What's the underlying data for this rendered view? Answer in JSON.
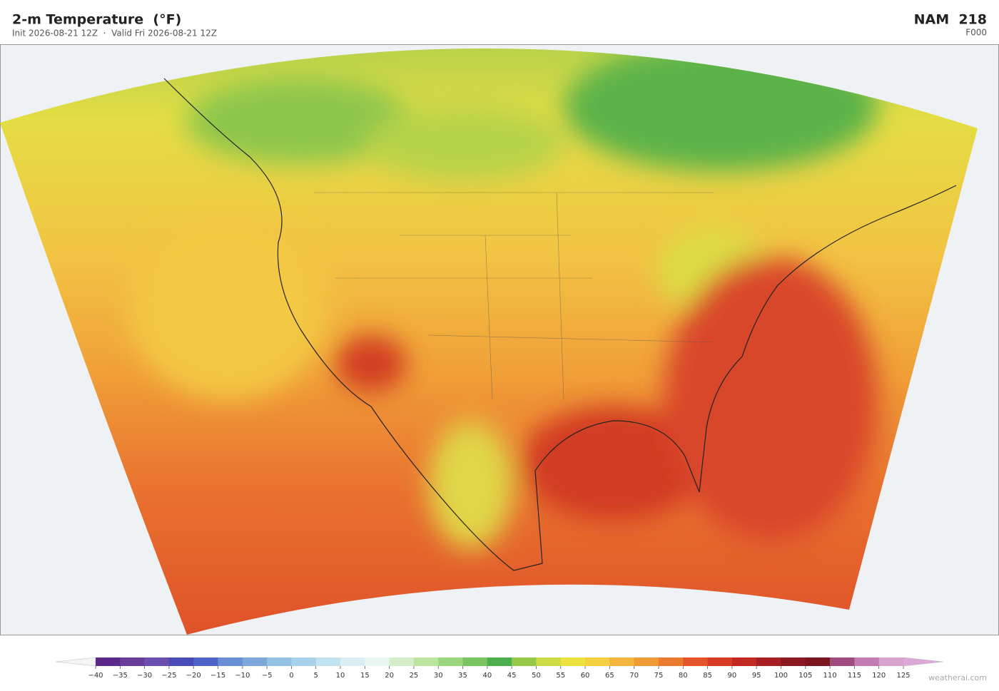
{
  "header": {
    "title": "2-m Temperature  (°F)",
    "subtitle": "Init 2026-08-21 12Z  ·  Valid Fri 2026-08-21 12Z",
    "model": "NAM  218",
    "forecast_hour": "F000"
  },
  "colorbar": {
    "range": [
      -40,
      125
    ],
    "ticks": [
      {
        "value": -40,
        "label": "−40"
      },
      {
        "value": -35,
        "label": "−35"
      },
      {
        "value": -30,
        "label": "−30"
      },
      {
        "value": -25,
        "label": "−25"
      },
      {
        "value": -20,
        "label": "−20"
      },
      {
        "value": -15,
        "label": "−15"
      },
      {
        "value": -10,
        "label": "−10"
      },
      {
        "value": -5,
        "label": "−5"
      },
      0,
      5,
      10,
      15,
      20,
      25,
      30,
      35,
      40,
      45,
      50,
      55,
      60,
      65,
      70,
      75,
      80,
      85,
      90,
      95,
      100,
      105,
      110,
      115,
      120,
      125
    ],
    "colors": [
      "#5b2a8c",
      "#6a3d9a",
      "#6b4fb0",
      "#4a4ab8",
      "#4f63c8",
      "#6a8ed4",
      "#7fa7dc",
      "#94c0e3",
      "#a9d2ea",
      "#c2e3ef",
      "#d9eff3",
      "#e8f6ef",
      "#d6eec8",
      "#bde3a0",
      "#9cd67f",
      "#78c460",
      "#4cae4c",
      "#96c94a",
      "#cddc45",
      "#ece23e",
      "#f4cf42",
      "#f3b43c",
      "#f09a36",
      "#eb7a31",
      "#e2552a",
      "#d63c24",
      "#c02a22",
      "#a51e22",
      "#8b1820",
      "#7a1520",
      "#a04a80",
      "#c27bb3",
      "#d8a4cf"
    ],
    "under_color": "#f4f4f4",
    "over_color": "#dca8d6"
  },
  "watermark": "weatherai.com"
}
